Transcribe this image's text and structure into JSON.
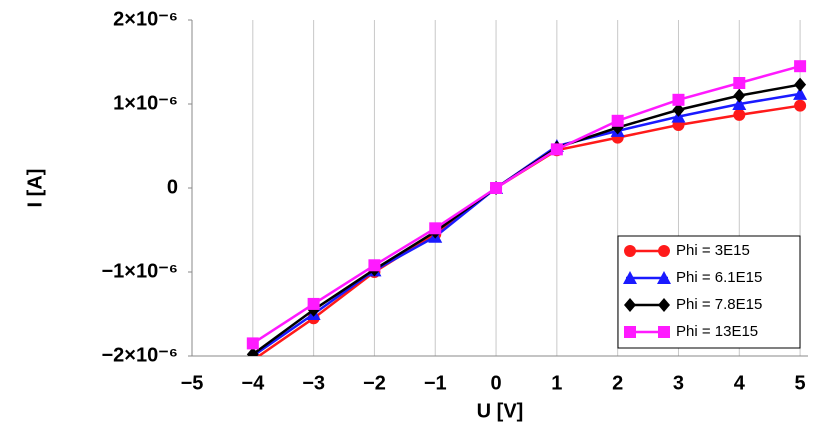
{
  "chart_data": {
    "type": "line",
    "xlabel": "U [V]",
    "ylabel": "I [A]",
    "x": [
      -4,
      -3,
      -2,
      -1,
      0,
      1,
      2,
      3,
      4,
      5
    ],
    "series": [
      {
        "name": "Phi = 3E15",
        "color": "#ff1a1a",
        "marker": "circle",
        "values": [
          -2.05e-06,
          -1.55e-06,
          -1e-06,
          -5.5e-07,
          0,
          4.5e-07,
          6e-07,
          7.5e-07,
          8.7e-07,
          9.8e-07
        ]
      },
      {
        "name": "Phi = 6.1E15",
        "color": "#1a1aff",
        "marker": "triangle",
        "values": [
          -2e-06,
          -1.5e-06,
          -9.8e-07,
          -5.8e-07,
          0,
          5e-07,
          6.8e-07,
          8.5e-07,
          1e-06,
          1.12e-06
        ]
      },
      {
        "name": "Phi = 7.8E15",
        "color": "#000000",
        "marker": "diamond",
        "values": [
          -1.98e-06,
          -1.45e-06,
          -9.7e-07,
          -5.2e-07,
          0,
          4.8e-07,
          7.2e-07,
          9.3e-07,
          1.1e-06,
          1.23e-06
        ]
      },
      {
        "name": "Phi = 13E15",
        "color": "#ff1aff",
        "marker": "square",
        "values": [
          -1.85e-06,
          -1.38e-06,
          -9.2e-07,
          -4.8e-07,
          0,
          4.6e-07,
          8e-07,
          1.05e-06,
          1.25e-06,
          1.45e-06
        ]
      }
    ],
    "xlim": [
      -5,
      5.13
    ],
    "xticks": [
      {
        "value": -5,
        "label": "−5"
      },
      {
        "value": -4,
        "label": "−4"
      },
      {
        "value": -3,
        "label": "−3"
      },
      {
        "value": -2,
        "label": "−2"
      },
      {
        "value": -1,
        "label": "−1"
      },
      0,
      1,
      2,
      3,
      4,
      5
    ],
    "ylim": [
      -2e-06,
      2e-06
    ],
    "yticks": [
      {
        "value": -2e-06,
        "label": "−2×10⁻⁶"
      },
      {
        "value": -1e-06,
        "label": "−1×10⁻⁶"
      },
      0,
      {
        "value": 1e-06,
        "label": "1×10⁻⁶"
      },
      {
        "value": 2e-06,
        "label": "2×10⁻⁶"
      }
    ],
    "grid": "x",
    "legend": "lower right"
  }
}
